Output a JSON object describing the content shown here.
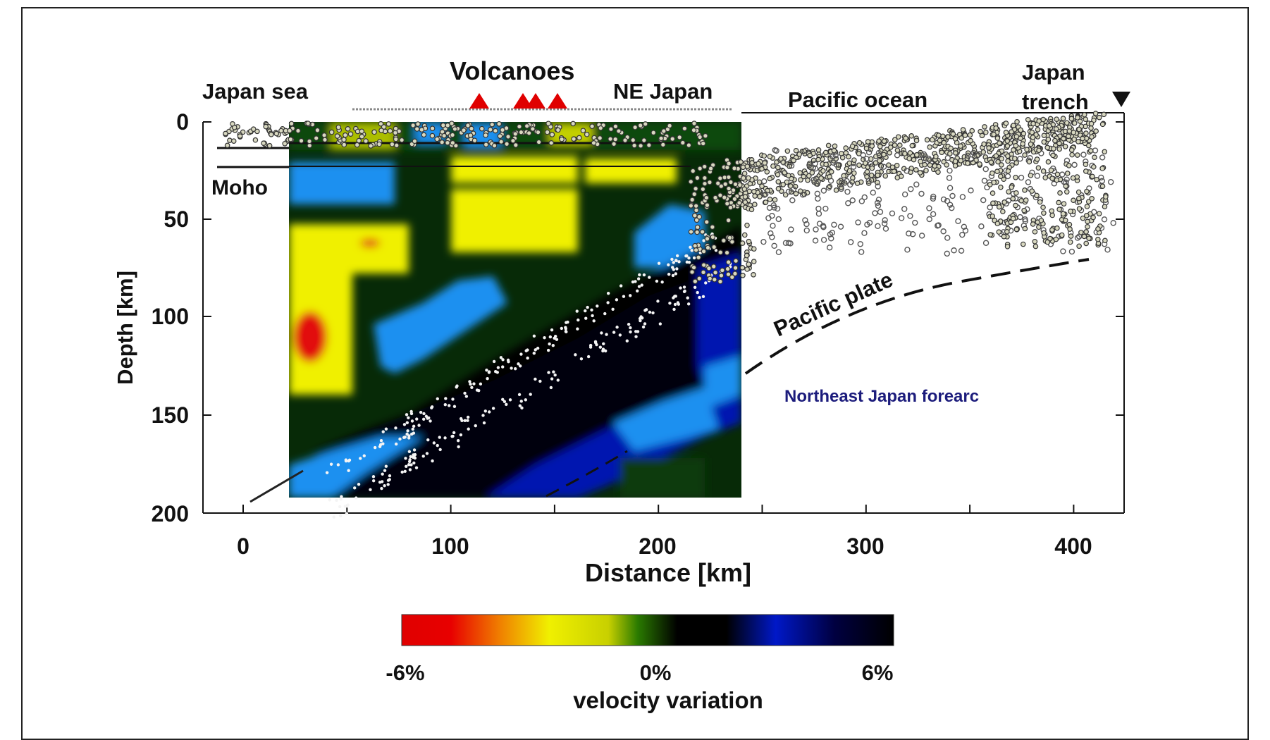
{
  "regions": {
    "japan_sea": "Japan sea",
    "volcanoes": "Volcanoes",
    "ne_japan": "NE Japan",
    "pacific_ocean": "Pacific ocean",
    "japan_trench_line1": "Japan",
    "japan_trench_line2": "trench"
  },
  "annotations": {
    "moho": "Moho",
    "pacific_plate": "Pacific plate",
    "forearc": "Northeast Japan forearc"
  },
  "axes": {
    "y_label": "Depth [km]",
    "x_label": "Distance [km]",
    "y_ticks": [
      "0",
      "50",
      "100",
      "150",
      "200"
    ],
    "x_ticks": [
      "0",
      "100",
      "200",
      "300",
      "400"
    ]
  },
  "colorbar": {
    "min_label": "-6%",
    "mid_label": "0%",
    "max_label": "6%",
    "title": "velocity variation",
    "stops": [
      "#e00000",
      "#f07000",
      "#f0f000",
      "#2a7a00",
      "#000000",
      "#0018c8",
      "#000000"
    ]
  },
  "colors": {
    "slow_red": "#e21010",
    "slow_yellow": "#f0f000",
    "neutral_green": "#0a3a08",
    "fast_blue": "#1a90f0",
    "deep_blue": "#0018b0",
    "black": "#000000",
    "volcano": "#e00000",
    "forearc_text": "#1c1c7c"
  },
  "icons": {
    "volcano": "red-triangle",
    "trench": "black-down-triangle"
  }
}
